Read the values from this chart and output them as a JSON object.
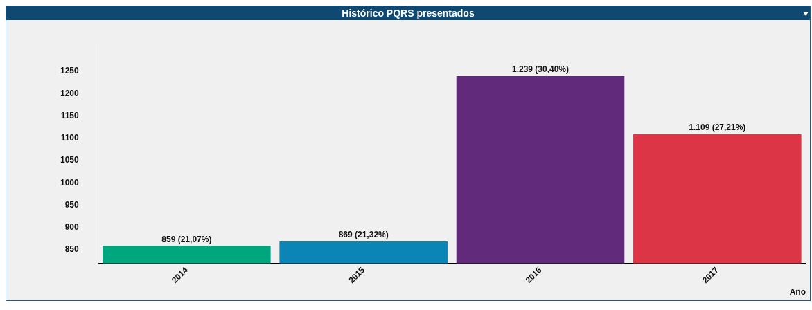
{
  "chart_data": {
    "type": "bar",
    "title": "Histórico PQRS presentados",
    "xlabel": "Año",
    "categories": [
      "2014",
      "2015",
      "2016",
      "2017"
    ],
    "values": [
      859,
      869,
      1239,
      1109
    ],
    "colors": [
      "#00a67e",
      "#0a85b5",
      "#622a7b",
      "#dc3545"
    ],
    "value_labels": [
      "859 (21,07%)",
      "869 (21,32%)",
      "1.239 (30,40%)",
      "1.109 (27,21%)"
    ],
    "ylim": [
      820,
      1310
    ],
    "yticks": [
      850,
      900,
      950,
      1000,
      1050,
      1100,
      1150,
      1200,
      1250
    ],
    "grid": false,
    "legend": false
  }
}
